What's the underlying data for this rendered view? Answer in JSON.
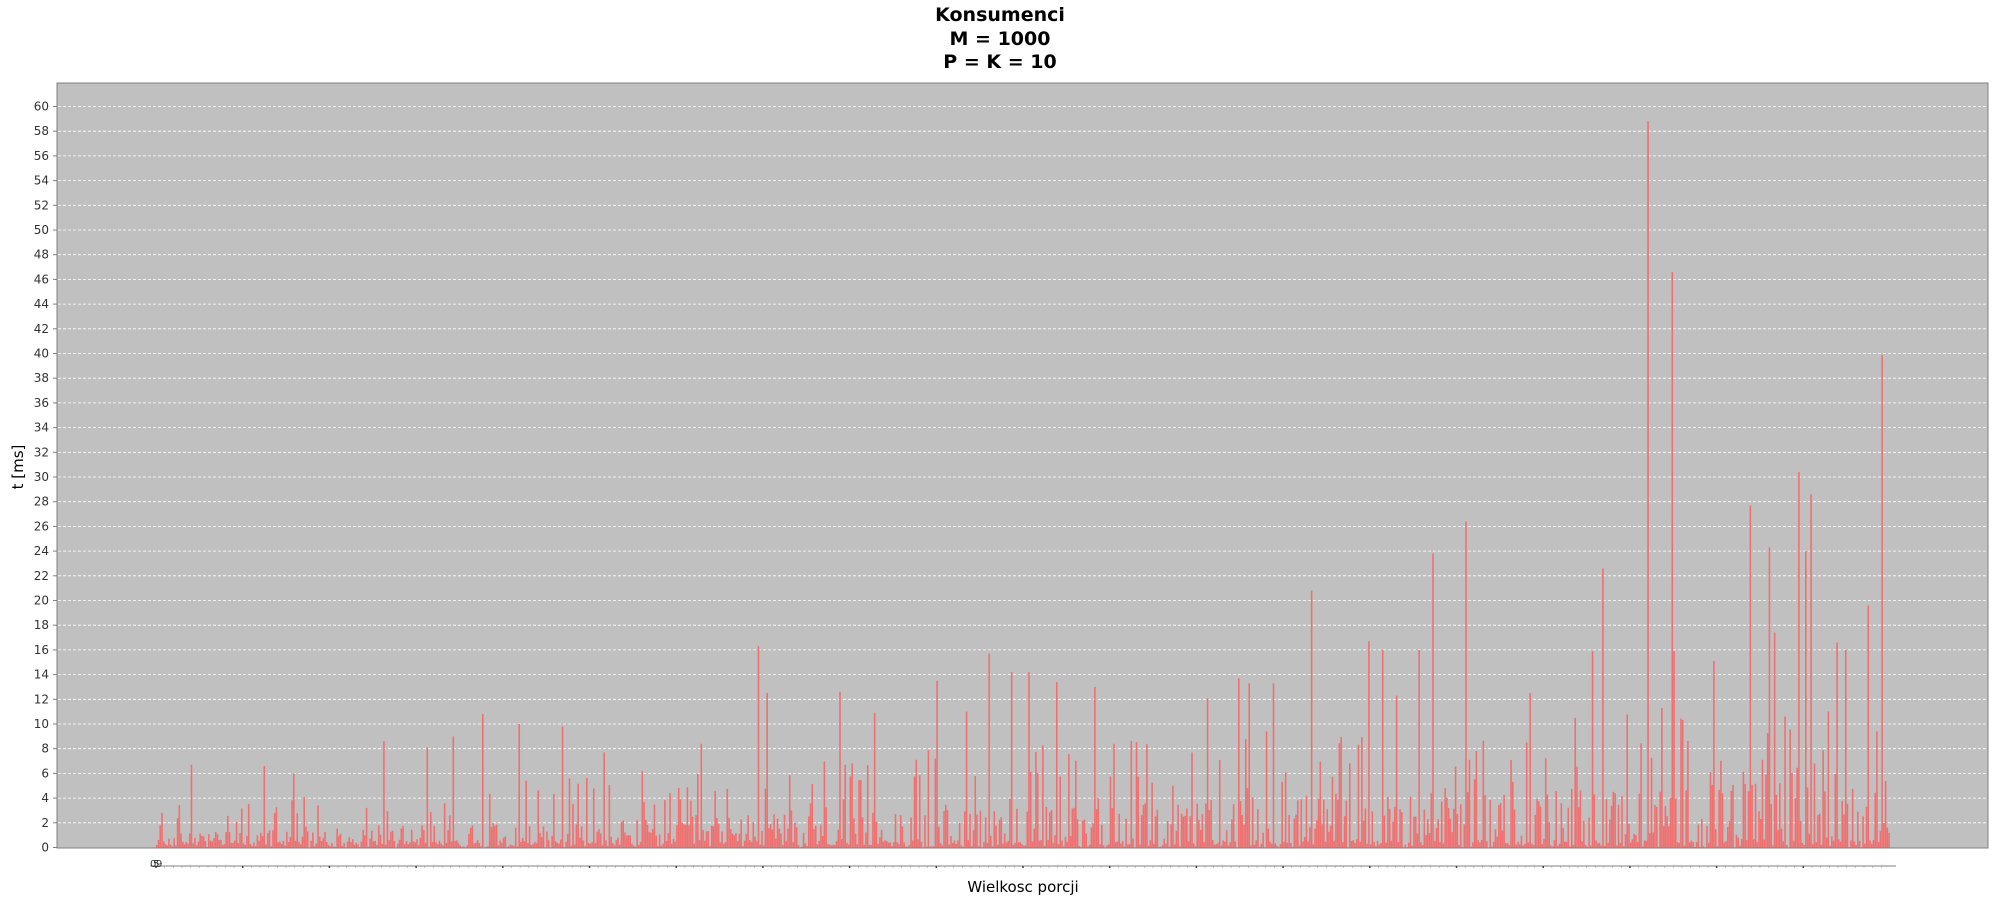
{
  "chart_data": {
    "type": "bar",
    "title_lines": [
      "Konsumenci",
      "M = 1000",
      "P = K = 10"
    ],
    "xlabel": "Wielkosc porcji",
    "ylabel": "t [ms]",
    "ylim": [
      0,
      62
    ],
    "yticks": [
      0,
      2,
      4,
      6,
      8,
      10,
      12,
      14,
      16,
      18,
      20,
      22,
      24,
      26,
      28,
      30,
      32,
      34,
      36,
      38,
      40,
      42,
      44,
      46,
      48,
      50,
      52,
      54,
      56,
      58,
      60
    ],
    "xticks_visible": [
      "0",
      "5",
      "9"
    ],
    "grid": true,
    "legend": "none",
    "background": "#c0c0c0",
    "bar_color": "#f07070",
    "n_categories": 1000,
    "peaks": [
      {
        "x": 20,
        "y": 6.7
      },
      {
        "x": 63,
        "y": 6.6
      },
      {
        "x": 80,
        "y": 6.0
      },
      {
        "x": 132,
        "y": 8.6
      },
      {
        "x": 158,
        "y": 8.1
      },
      {
        "x": 173,
        "y": 9.0
      },
      {
        "x": 190,
        "y": 10.8
      },
      {
        "x": 211,
        "y": 10.0
      },
      {
        "x": 236,
        "y": 9.8
      },
      {
        "x": 261,
        "y": 7.7
      },
      {
        "x": 317,
        "y": 8.4
      },
      {
        "x": 350,
        "y": 16.3
      },
      {
        "x": 356,
        "y": 12.5
      },
      {
        "x": 398,
        "y": 12.6
      },
      {
        "x": 418,
        "y": 10.9
      },
      {
        "x": 455,
        "y": 13.5
      },
      {
        "x": 472,
        "y": 11.0
      },
      {
        "x": 485,
        "y": 15.7
      },
      {
        "x": 498,
        "y": 14.2
      },
      {
        "x": 508,
        "y": 14.2
      },
      {
        "x": 524,
        "y": 13.4
      },
      {
        "x": 546,
        "y": 13.0
      },
      {
        "x": 612,
        "y": 12.1
      },
      {
        "x": 630,
        "y": 13.7
      },
      {
        "x": 636,
        "y": 13.3
      },
      {
        "x": 650,
        "y": 13.3
      },
      {
        "x": 673,
        "y": 20.8
      },
      {
        "x": 706,
        "y": 16.7
      },
      {
        "x": 714,
        "y": 16.0
      },
      {
        "x": 722,
        "y": 12.3
      },
      {
        "x": 735,
        "y": 16.0
      },
      {
        "x": 743,
        "y": 23.8
      },
      {
        "x": 763,
        "y": 26.4
      },
      {
        "x": 800,
        "y": 12.5
      },
      {
        "x": 836,
        "y": 15.9
      },
      {
        "x": 842,
        "y": 22.6
      },
      {
        "x": 869,
        "y": 58.8
      },
      {
        "x": 883,
        "y": 46.6
      },
      {
        "x": 884,
        "y": 15.9
      },
      {
        "x": 907,
        "y": 15.1
      },
      {
        "x": 928,
        "y": 27.7
      },
      {
        "x": 939,
        "y": 24.3
      },
      {
        "x": 942,
        "y": 17.4
      },
      {
        "x": 956,
        "y": 30.4
      },
      {
        "x": 961,
        "y": 24.0
      },
      {
        "x": 964,
        "y": 28.6
      },
      {
        "x": 979,
        "y": 16.6
      },
      {
        "x": 984,
        "y": 16.0
      },
      {
        "x": 997,
        "y": 19.6
      },
      {
        "x": 1002,
        "y": 9.4
      },
      {
        "x": 1005,
        "y": 39.9
      }
    ]
  }
}
